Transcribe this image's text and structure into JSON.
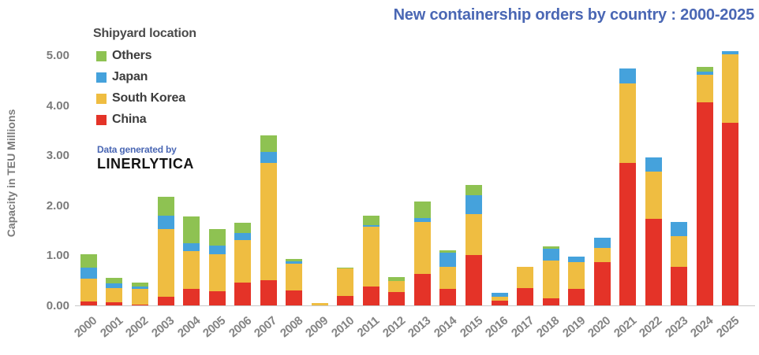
{
  "title": "New containership orders by country : 2000-2025",
  "ylabel": "Capacity in TEU Millions",
  "legend": {
    "title": "Shipyard location",
    "items": [
      {
        "label": "Others",
        "color": "#8EC252"
      },
      {
        "label": "Japan",
        "color": "#45A2DC"
      },
      {
        "label": "South Korea",
        "color": "#EFBD41"
      },
      {
        "label": "China",
        "color": "#E43328"
      }
    ]
  },
  "watermark": {
    "line1": "Data generated by",
    "line2": "LINERLYTICA"
  },
  "colors": {
    "title": "#4A67B4",
    "axis_text": "#7B7B7B",
    "axis_line": "#C8C8C8",
    "china": "#E43328",
    "south_korea": "#EFBD41",
    "japan": "#45A2DC",
    "others": "#8EC252"
  },
  "chart_data": {
    "type": "bar",
    "stacked": true,
    "title": "New containership orders by country : 2000-2025",
    "xlabel": "",
    "ylabel": "Capacity in TEU Millions",
    "ylim": [
      0,
      5.3
    ],
    "yticks": [
      "0.00",
      "1.00",
      "2.00",
      "3.00",
      "4.00",
      "5.00"
    ],
    "grid": false,
    "legend_position": "upper-left",
    "categories": [
      "2000",
      "2001",
      "2002",
      "2003",
      "2004",
      "2005",
      "2006",
      "2007",
      "2008",
      "2009",
      "2010",
      "2011",
      "2012",
      "2013",
      "2014",
      "2015",
      "2016",
      "2017",
      "2018",
      "2019",
      "2020",
      "2021",
      "2022",
      "2023",
      "2024",
      "2025"
    ],
    "series": [
      {
        "name": "China",
        "color": "#E43328",
        "values": [
          0.08,
          0.07,
          0.01,
          0.18,
          0.33,
          0.28,
          0.46,
          0.5,
          0.3,
          0.0,
          0.19,
          0.38,
          0.27,
          0.63,
          0.33,
          1.01,
          0.1,
          0.35,
          0.14,
          0.33,
          0.86,
          2.84,
          1.73,
          0.77,
          4.05,
          3.65
        ]
      },
      {
        "name": "South Korea",
        "color": "#EFBD41",
        "values": [
          0.46,
          0.27,
          0.32,
          1.35,
          0.75,
          0.75,
          0.85,
          2.35,
          0.53,
          0.05,
          0.55,
          1.2,
          0.22,
          1.03,
          0.44,
          0.81,
          0.07,
          0.42,
          0.76,
          0.54,
          0.29,
          1.6,
          0.95,
          0.61,
          0.55,
          1.37
        ]
      },
      {
        "name": "Japan",
        "color": "#45A2DC",
        "values": [
          0.21,
          0.1,
          0.05,
          0.27,
          0.17,
          0.16,
          0.14,
          0.21,
          0.05,
          0.0,
          0.0,
          0.02,
          0.0,
          0.09,
          0.28,
          0.38,
          0.08,
          0.0,
          0.24,
          0.11,
          0.2,
          0.3,
          0.28,
          0.28,
          0.07,
          0.06
        ]
      },
      {
        "name": "Others",
        "color": "#8EC252",
        "values": [
          0.28,
          0.11,
          0.07,
          0.37,
          0.52,
          0.34,
          0.2,
          0.33,
          0.05,
          0.0,
          0.02,
          0.2,
          0.07,
          0.33,
          0.05,
          0.2,
          0.0,
          0.0,
          0.04,
          0.0,
          0.0,
          0.0,
          0.0,
          0.0,
          0.1,
          0.0
        ]
      }
    ]
  }
}
